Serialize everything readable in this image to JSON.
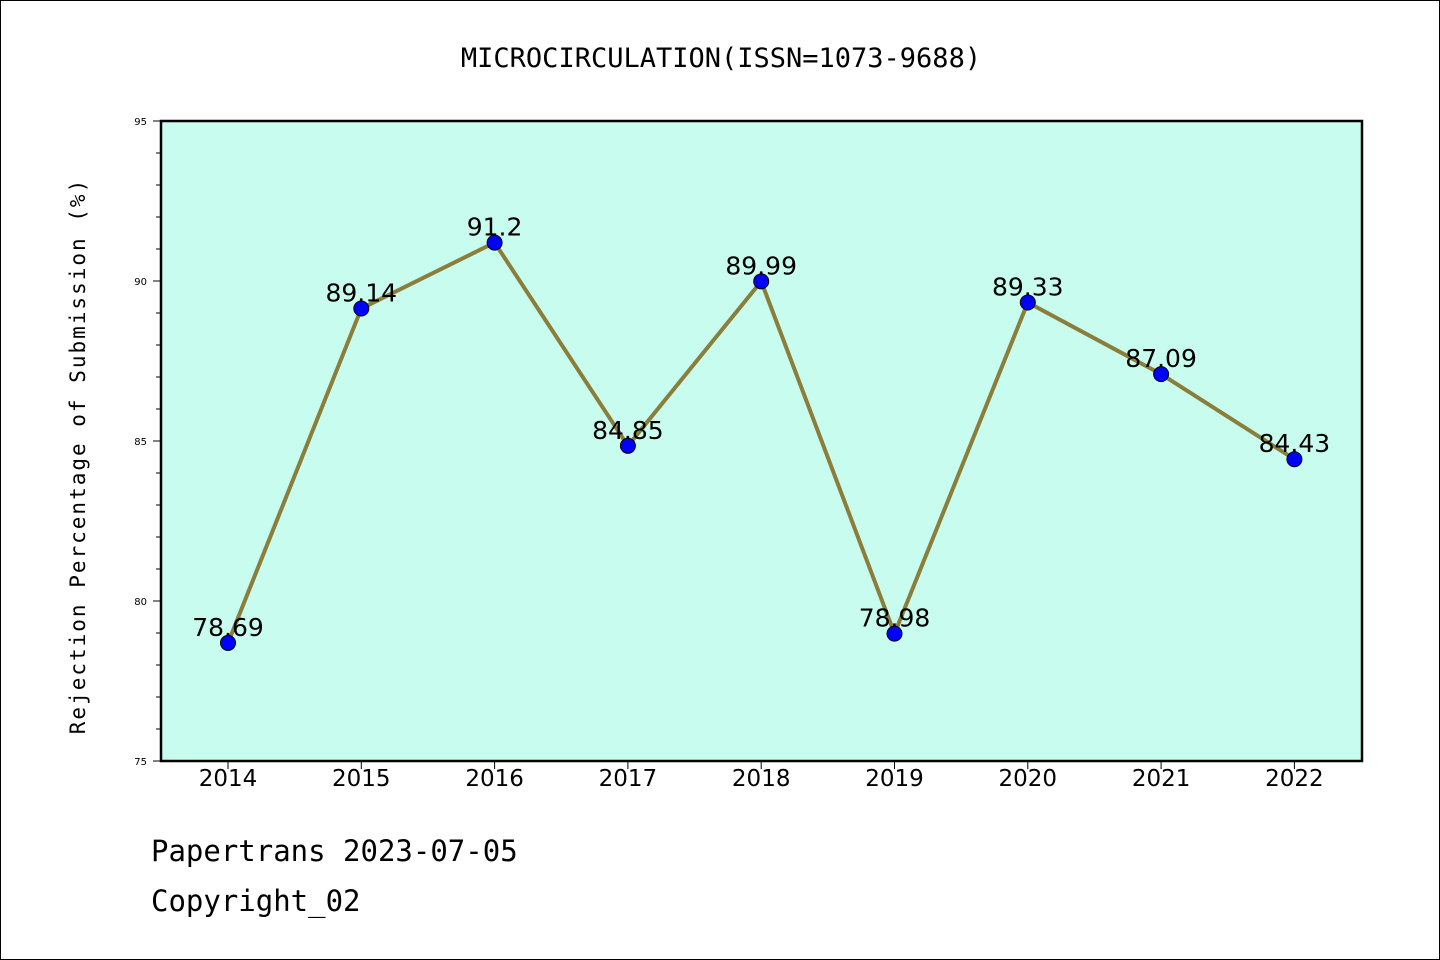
{
  "chart_data": {
    "type": "line",
    "title": "MICROCIRCULATION(ISSN=1073-9688)",
    "ylabel": "Rejection Percentage of Submission (%)",
    "xlabel": "",
    "categories": [
      "2014",
      "2015",
      "2016",
      "2017",
      "2018",
      "2019",
      "2020",
      "2021",
      "2022"
    ],
    "values": [
      78.69,
      89.14,
      91.2,
      84.85,
      89.99,
      78.98,
      89.33,
      87.09,
      84.43
    ],
    "data_labels": [
      "78.69",
      "89.14",
      "91.2",
      "84.85",
      "89.99",
      "78.98",
      "89.33",
      "87.09",
      "84.43"
    ],
    "ylim": [
      75,
      95
    ],
    "yticks": [
      "75",
      "80",
      "85",
      "90",
      "95"
    ],
    "grid": false,
    "legend": "none",
    "colors": {
      "plot_background": "#c8fcee",
      "line": "#8b7d3a",
      "marker": "#0000ff"
    }
  },
  "footer": {
    "line1": "Papertrans 2023-07-05",
    "line2": "Copyright_02"
  }
}
